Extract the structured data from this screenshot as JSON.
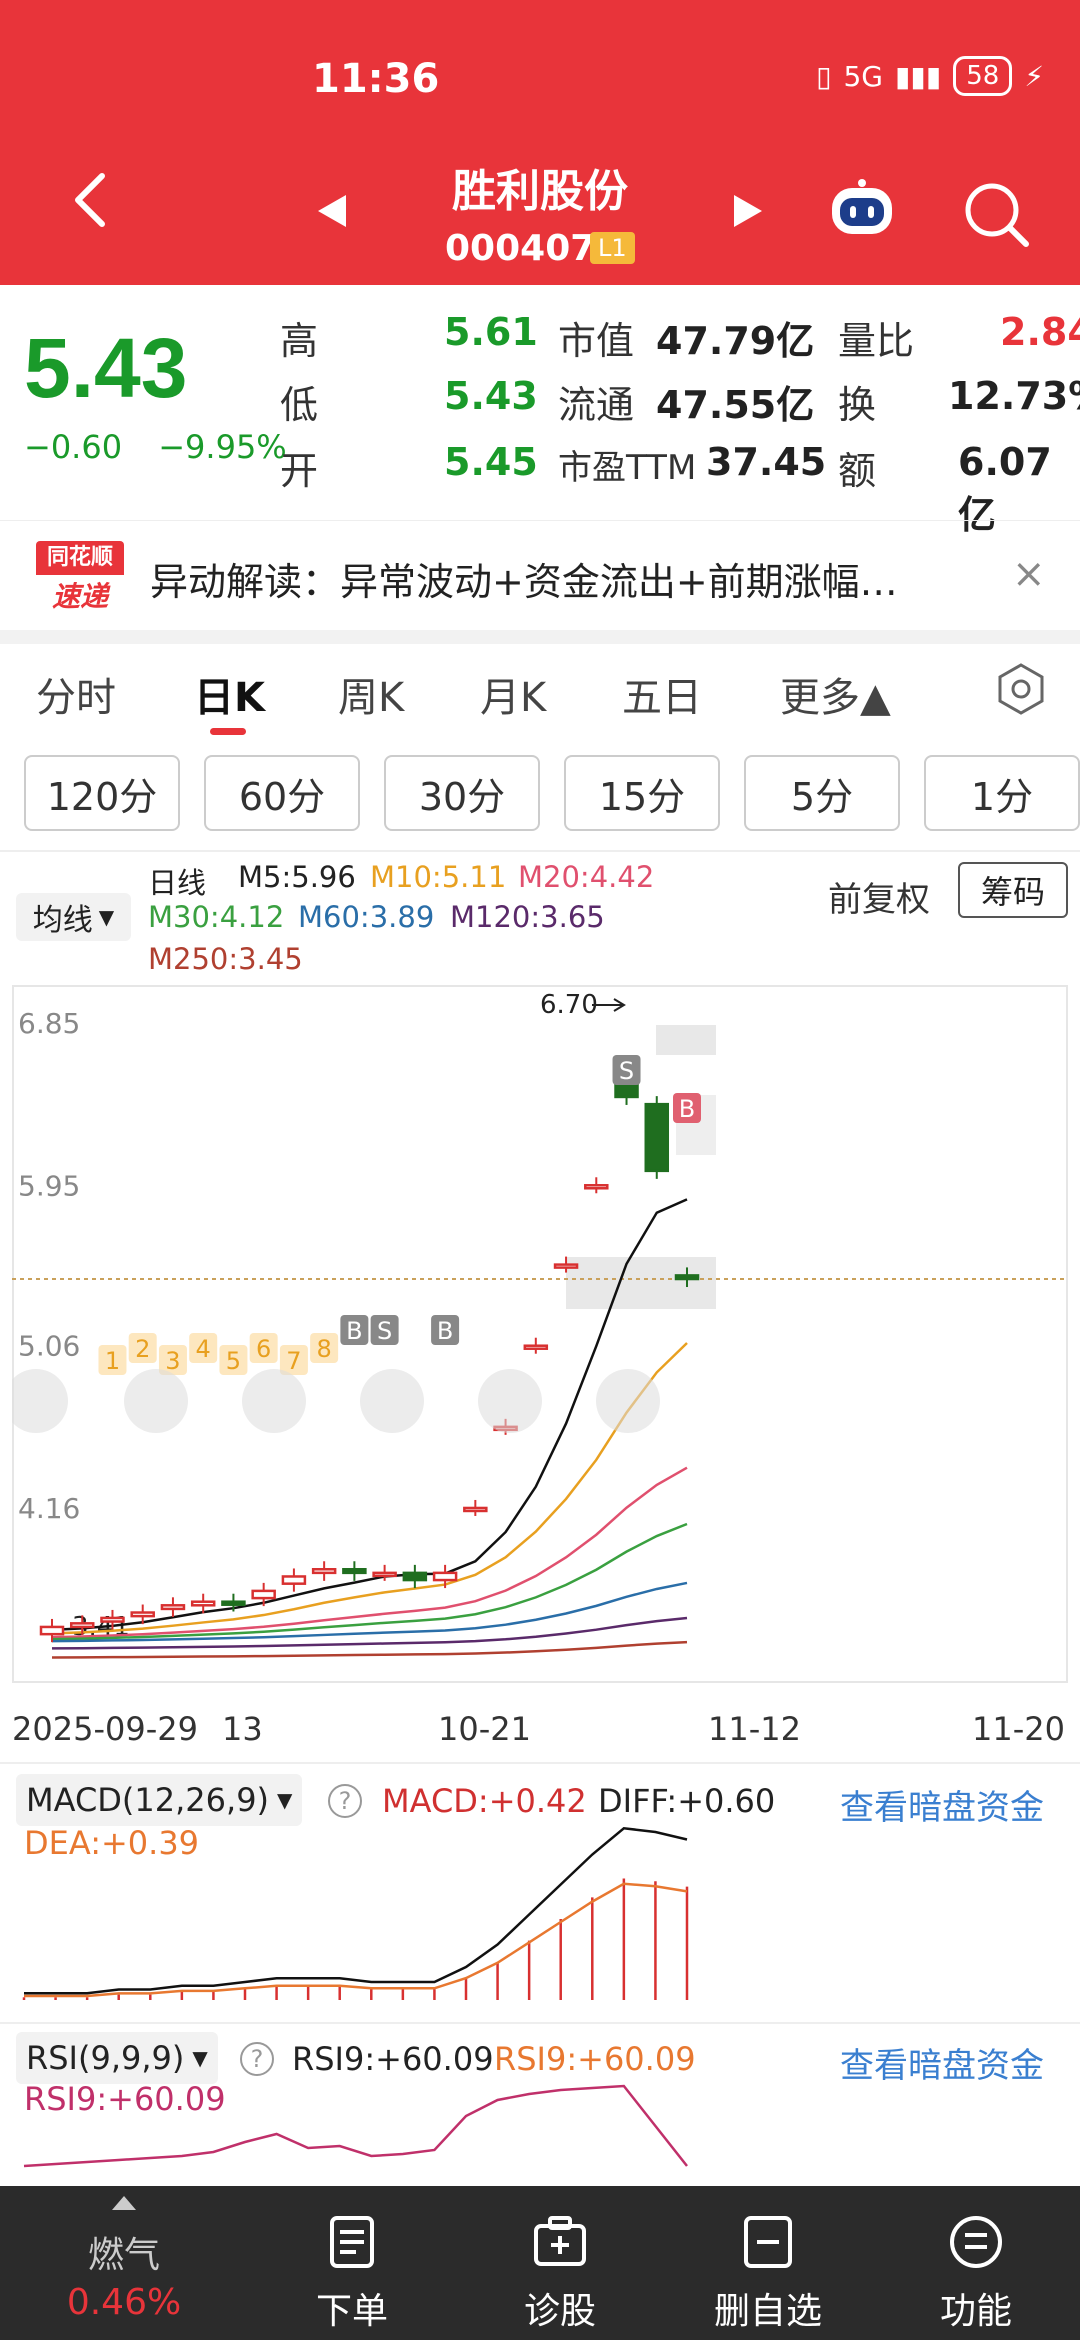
{
  "status": {
    "time": "11:36",
    "signal": "5G",
    "battery": "58"
  },
  "header": {
    "name": "胜利股份",
    "code": "000407",
    "level": "L1"
  },
  "quote": {
    "price": "5.43",
    "change": "−0.60",
    "change_pct": "−9.95%",
    "rows": [
      {
        "l1": "高",
        "v1": "5.61",
        "l2": "市值",
        "v2": "47.79亿",
        "l3": "量比",
        "v3": "2.84"
      },
      {
        "l1": "低",
        "v1": "5.43",
        "l2": "流通",
        "v2": "47.55亿",
        "l3": "换",
        "v3": "12.73%"
      },
      {
        "l1": "开",
        "v1": "5.45",
        "l2": "市盈TTM",
        "v2": "37.45",
        "l3": "额",
        "v3": "6.07亿"
      }
    ]
  },
  "notice": {
    "logo_top": "同花顺",
    "logo_bottom": "速递",
    "text": "异动解读：异常波动+资金流出+前期涨幅…",
    "close": "×"
  },
  "tabs": [
    "分时",
    "日K",
    "周K",
    "月K",
    "五日",
    "更多▲"
  ],
  "intervals": [
    "120分",
    "60分",
    "30分",
    "15分",
    "5分",
    "1分"
  ],
  "ma": {
    "button": "均线",
    "label": "日线",
    "m5": "M5:5.96",
    "m10": "M10:5.11",
    "m20": "M20:4.42",
    "m30": "M30:4.12",
    "m60": "M60:3.89",
    "m120": "M120:3.65",
    "m250": "M250:3.45",
    "fq": "前复权",
    "cm": "筹码"
  },
  "chart_data": {
    "type": "candlestick",
    "y_ticks": [
      "6.85",
      "5.95",
      "5.06",
      "4.16"
    ],
    "high_label": "6.70",
    "low_label": "3.41",
    "x_labels": [
      "2025-09-29",
      "13",
      "10-21",
      "11-12",
      "11-20"
    ],
    "close": [
      3.5,
      3.52,
      3.55,
      3.58,
      3.62,
      3.64,
      3.63,
      3.7,
      3.78,
      3.82,
      3.8,
      3.8,
      3.76,
      3.8,
      4.16,
      4.61,
      5.06,
      5.51,
      5.95,
      6.44,
      6.03,
      5.43
    ],
    "open": [
      3.46,
      3.5,
      3.53,
      3.56,
      3.6,
      3.62,
      3.64,
      3.66,
      3.74,
      3.8,
      3.82,
      3.8,
      3.8,
      3.76,
      4.16,
      4.61,
      5.06,
      5.51,
      5.95,
      6.6,
      6.4,
      5.45
    ],
    "markers": [
      "1",
      "2",
      "3",
      "4",
      "5",
      "6",
      "7",
      "8",
      "B",
      "S",
      "B",
      "S",
      "B"
    ]
  },
  "macd": {
    "title": "MACD(12,26,9)",
    "macd": "MACD:+0.42",
    "diff": "DIFF:+0.60",
    "dea": "DEA:+0.39",
    "link": "查看暗盘资金"
  },
  "rsi": {
    "title": "RSI(9,9,9)",
    "r1": "RSI9:+60.09",
    "r2": "RSI9:+60.09",
    "r3": "RSI9:+60.09",
    "link": "查看暗盘资金"
  },
  "nav": {
    "gas_label": "燃气",
    "gas_pct": "0.46%",
    "items": [
      "下单",
      "诊股",
      "删自选",
      "功能"
    ]
  },
  "colors": {
    "red": "#e8343a",
    "green": "#1a9a2a",
    "orange": "#e8a020",
    "blue": "#3a7fd0"
  }
}
